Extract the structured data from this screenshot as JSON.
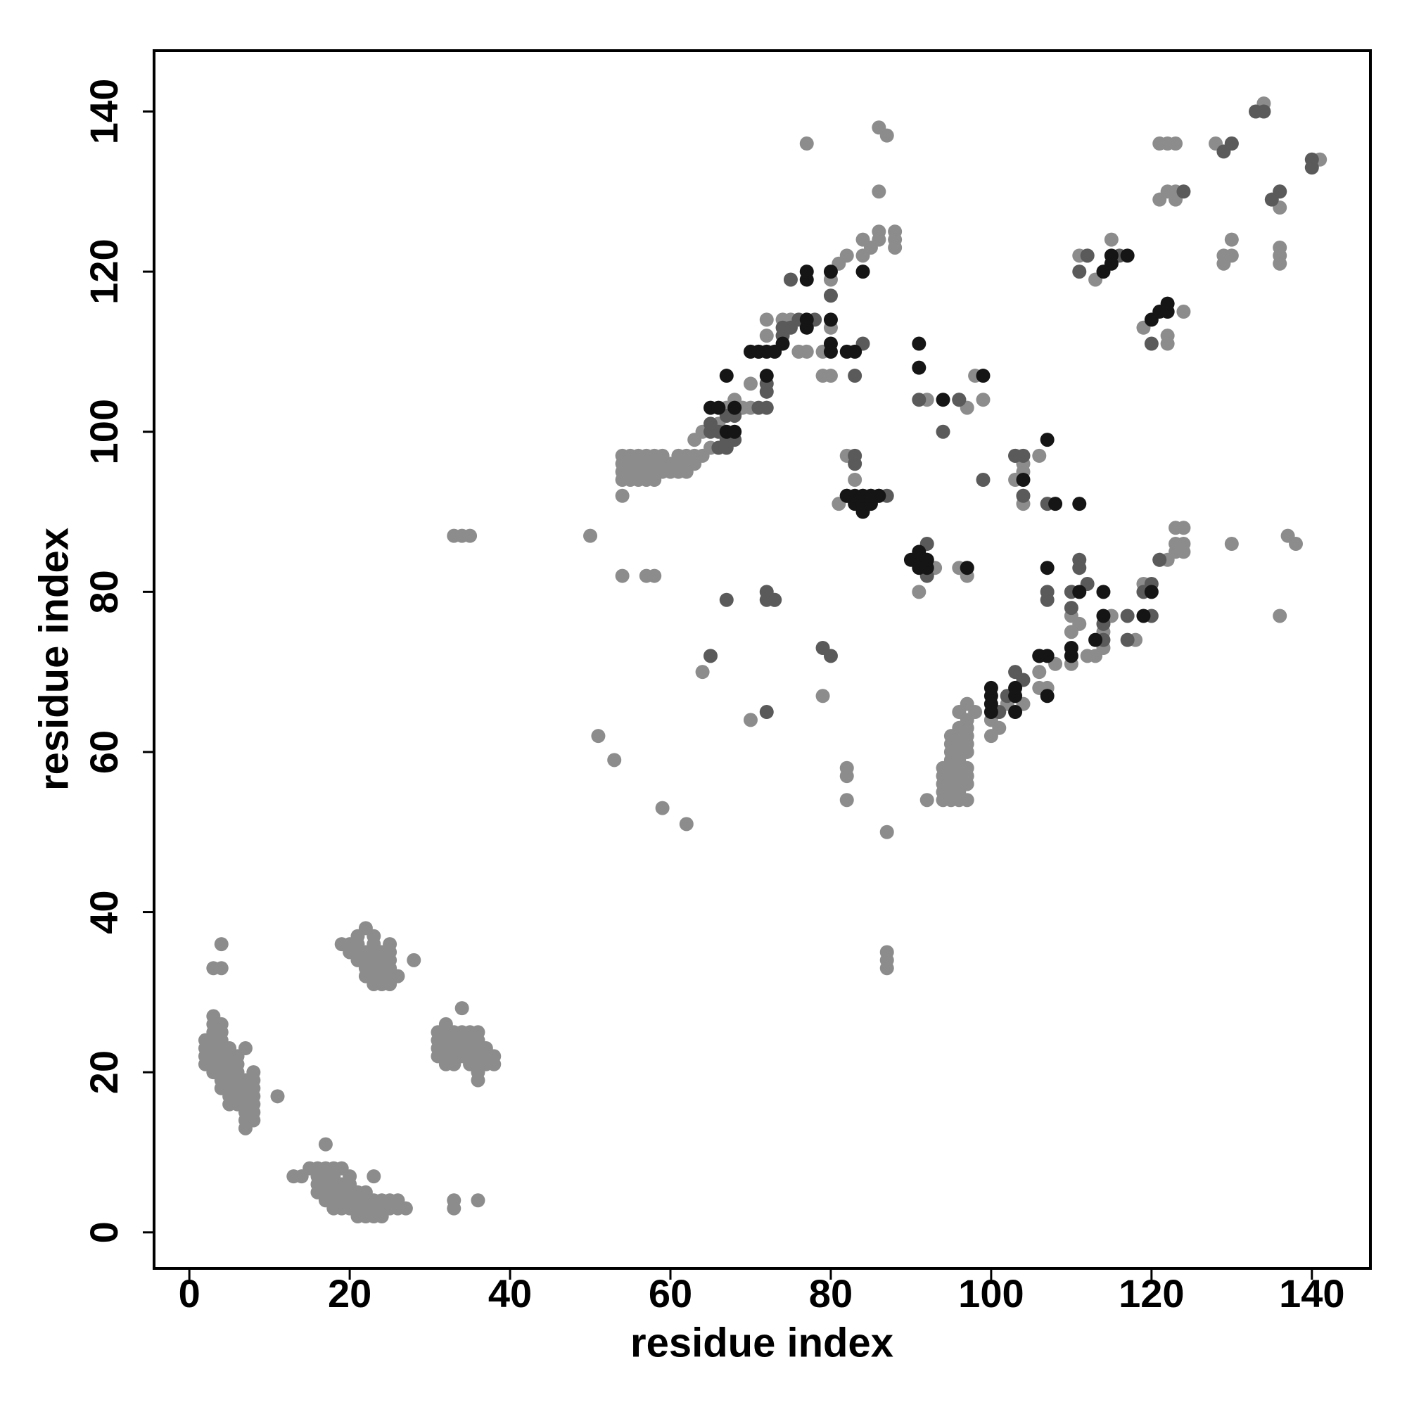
{
  "chart_data": {
    "type": "scatter",
    "x_label": "residue index",
    "y_label": "residue index",
    "xlim": [
      -4.4,
      147.3
    ],
    "ylim": [
      -4.5,
      147.6
    ],
    "xticks": [
      0,
      20,
      40,
      60,
      80,
      100,
      120,
      140
    ],
    "yticks": [
      0,
      20,
      40,
      60,
      80,
      100,
      120,
      140
    ],
    "series": [
      {
        "color": "#8c8c8c",
        "x": [
          2,
          2,
          2,
          2,
          3,
          3,
          3,
          3,
          3,
          3,
          3,
          3,
          4,
          4,
          4,
          4,
          4,
          4,
          4,
          4,
          4,
          5,
          5,
          5,
          5,
          5,
          5,
          5,
          5,
          6,
          6,
          6,
          6,
          6,
          6,
          6,
          7,
          7,
          7,
          7,
          7,
          7,
          7,
          7,
          8,
          8,
          8,
          8,
          8,
          8,
          8,
          11,
          3,
          4,
          4,
          13,
          14,
          15,
          16,
          16,
          16,
          16,
          17,
          17,
          17,
          17,
          17,
          17,
          18,
          18,
          18,
          18,
          18,
          18,
          19,
          19,
          19,
          19,
          19,
          20,
          20,
          20,
          20,
          20,
          21,
          21,
          21,
          21,
          22,
          22,
          22,
          22,
          23,
          23,
          23,
          23,
          24,
          24,
          24,
          25,
          25,
          26,
          26,
          27,
          33,
          33,
          36,
          19,
          20,
          20,
          21,
          21,
          21,
          21,
          22,
          22,
          22,
          22,
          22,
          23,
          23,
          23,
          23,
          23,
          23,
          23,
          24,
          24,
          24,
          24,
          24,
          25,
          25,
          25,
          25,
          25,
          25,
          26,
          28,
          31,
          31,
          31,
          31,
          32,
          32,
          32,
          32,
          32,
          32,
          33,
          33,
          33,
          33,
          33,
          34,
          34,
          34,
          34,
          34,
          35,
          35,
          35,
          35,
          35,
          36,
          36,
          36,
          36,
          36,
          36,
          36,
          37,
          37,
          37,
          38,
          38,
          33,
          34,
          35,
          50,
          54,
          57,
          58,
          51,
          53,
          59,
          62,
          64,
          70,
          77,
          86,
          87,
          86,
          87,
          87,
          87,
          87,
          82,
          82,
          82,
          79,
          92,
          91,
          136,
          137,
          138,
          130,
          54,
          54,
          54,
          54,
          54,
          55,
          55,
          55,
          55,
          56,
          56,
          56,
          56,
          57,
          57,
          57,
          57,
          58,
          58,
          58,
          58,
          59,
          59,
          59,
          60,
          60,
          61,
          61,
          61,
          62,
          62,
          62,
          63,
          63,
          63,
          64,
          64,
          65,
          66,
          67,
          68,
          69,
          70,
          70,
          71,
          72,
          72,
          74,
          75,
          76,
          77,
          79,
          79,
          80,
          80,
          81,
          80,
          82,
          84,
          84,
          85,
          86,
          86,
          88,
          88,
          88,
          94,
          94,
          94,
          94,
          94,
          95,
          95,
          95,
          95,
          95,
          95,
          95,
          95,
          95,
          96,
          96,
          96,
          96,
          96,
          96,
          96,
          96,
          96,
          96,
          96,
          97,
          97,
          97,
          97,
          97,
          97,
          97,
          97,
          97,
          97,
          98,
          100,
          100,
          101,
          102,
          103,
          104,
          106,
          106,
          107,
          108,
          110,
          110,
          110,
          111,
          112,
          113,
          114,
          114,
          115,
          118,
          119,
          121,
          122,
          123,
          123,
          123,
          124,
          124,
          124,
          119,
          121,
          122,
          123,
          121,
          122,
          123,
          123,
          113,
          112,
          111,
          115,
          124,
          129,
          129,
          130,
          130,
          128,
          130,
          134,
          136,
          136,
          136,
          136,
          136,
          141,
          122,
          122,
          104,
          104,
          103,
          104,
          103,
          106,
          104,
          99,
          98,
          97,
          96,
          92,
          93,
          96,
          97,
          81,
          82,
          83,
          82,
          91,
          86,
          96,
          73
        ],
        "values": [
          21,
          22,
          23,
          24,
          20,
          21,
          22,
          23,
          24,
          25,
          26,
          27,
          18,
          19,
          20,
          21,
          22,
          23,
          24,
          25,
          26,
          16,
          17,
          18,
          19,
          20,
          21,
          22,
          23,
          16,
          17,
          18,
          19,
          20,
          21,
          22,
          13,
          14,
          15,
          16,
          17,
          18,
          19,
          23,
          14,
          15,
          16,
          17,
          18,
          19,
          20,
          17,
          33,
          33,
          36,
          7,
          7,
          8,
          5,
          6,
          7,
          8,
          4,
          5,
          6,
          7,
          8,
          11,
          3,
          4,
          5,
          6,
          7,
          8,
          3,
          4,
          5,
          6,
          8,
          3,
          4,
          5,
          6,
          7,
          2,
          3,
          4,
          5,
          2,
          3,
          4,
          5,
          2,
          3,
          4,
          7,
          2,
          3,
          4,
          3,
          4,
          3,
          4,
          3,
          3,
          4,
          4,
          36,
          35,
          36,
          34,
          35,
          36,
          37,
          32,
          33,
          34,
          35,
          38,
          31,
          32,
          33,
          34,
          35,
          36,
          37,
          31,
          32,
          33,
          34,
          35,
          31,
          32,
          33,
          34,
          35,
          36,
          32,
          34,
          22,
          23,
          24,
          25,
          21,
          22,
          23,
          24,
          25,
          26,
          21,
          22,
          23,
          24,
          25,
          22,
          23,
          24,
          25,
          28,
          21,
          22,
          23,
          24,
          25,
          19,
          20,
          21,
          22,
          23,
          24,
          25,
          21,
          22,
          23,
          21,
          22,
          87,
          87,
          87,
          87,
          82,
          82,
          82,
          62,
          59,
          53,
          51,
          70,
          64,
          136,
          138,
          137,
          130,
          50,
          33,
          34,
          35,
          54,
          57,
          58,
          67,
          54,
          80,
          77,
          87,
          86,
          86,
          92,
          94,
          95,
          96,
          97,
          94,
          95,
          96,
          97,
          94,
          95,
          96,
          97,
          94,
          95,
          96,
          97,
          94,
          95,
          96,
          97,
          95,
          96,
          97,
          95,
          96,
          95,
          96,
          97,
          95,
          96,
          97,
          96,
          97,
          99,
          97,
          100,
          98,
          101,
          103,
          104,
          103,
          106,
          103,
          110,
          112,
          114,
          114,
          114,
          110,
          110,
          110,
          107,
          107,
          113,
          121,
          119,
          122,
          122,
          124,
          123,
          124,
          125,
          123,
          124,
          125,
          54,
          55,
          56,
          57,
          58,
          54,
          55,
          56,
          57,
          58,
          59,
          60,
          61,
          62,
          54,
          55,
          56,
          57,
          58,
          59,
          60,
          61,
          62,
          63,
          65,
          54,
          56,
          57,
          58,
          60,
          61,
          62,
          63,
          64,
          66,
          65,
          62,
          64,
          63,
          66,
          67,
          66,
          68,
          70,
          68,
          71,
          71,
          75,
          77,
          76,
          72,
          72,
          73,
          75,
          77,
          74,
          81,
          84,
          84,
          85,
          86,
          88,
          85,
          86,
          88,
          113,
          136,
          136,
          136,
          129,
          130,
          129,
          130,
          119,
          122,
          122,
          124,
          115,
          121,
          122,
          122,
          124,
          136,
          136,
          141,
          128,
          121,
          122,
          123,
          130,
          134,
          111,
          112,
          91,
          92,
          94,
          96,
          97,
          97,
          95,
          104,
          107,
          103,
          104,
          104,
          83,
          83,
          82,
          91,
          97,
          94,
          92,
          84,
          92,
          104,
          79
        ]
      },
      {
        "color": "#5a5a5a",
        "x": [
          65,
          65,
          66,
          66,
          67,
          67,
          68,
          67,
          68,
          71,
          72,
          72,
          72,
          72,
          72,
          73,
          72,
          65,
          67,
          75,
          74,
          74,
          76,
          75,
          80,
          78,
          79,
          80,
          84,
          83,
          85,
          86,
          87,
          84,
          83,
          83,
          82,
          92,
          92,
          92,
          91,
          94,
          96,
          97,
          101,
          102,
          104,
          103,
          107,
          107,
          106,
          111,
          111,
          110,
          110,
          112,
          114,
          114,
          117,
          117,
          120,
          120,
          121,
          119,
          120,
          112,
          111,
          116,
          124,
          129,
          130,
          133,
          134,
          135,
          136,
          140,
          140,
          103,
          104,
          107,
          104,
          99
        ],
        "values": [
          101,
          100,
          98,
          100,
          98,
          99,
          99,
          102,
          102,
          103,
          103,
          105,
          106,
          80,
          79,
          79,
          65,
          72,
          79,
          113,
          112,
          113,
          114,
          119,
          117,
          114,
          73,
          72,
          111,
          107,
          92,
          92,
          92,
          92,
          96,
          97,
          92,
          82,
          84,
          86,
          104,
          100,
          104,
          83,
          65,
          67,
          69,
          70,
          79,
          80,
          72,
          83,
          84,
          80,
          78,
          81,
          74,
          76,
          74,
          77,
          81,
          77,
          84,
          80,
          111,
          122,
          120,
          122,
          130,
          135,
          136,
          140,
          140,
          129,
          130,
          133,
          134,
          97,
          92,
          91,
          97,
          94
        ]
      },
      {
        "color": "#151515",
        "x": [
          65,
          66,
          67,
          68,
          68,
          67,
          70,
          71,
          72,
          72,
          73,
          74,
          77,
          77,
          77,
          77,
          80,
          80,
          80,
          80,
          82,
          83,
          84,
          83,
          83,
          84,
          84,
          84,
          85,
          85,
          86,
          82,
          90,
          91,
          91,
          91,
          92,
          92,
          91,
          91,
          94,
          97,
          99,
          100,
          100,
          100,
          100,
          103,
          103,
          103,
          104,
          106,
          107,
          107,
          107,
          107,
          108,
          111,
          110,
          110,
          111,
          113,
          114,
          114,
          119,
          120,
          114,
          115,
          115,
          120,
          121,
          122,
          122,
          117
        ],
        "values": [
          103,
          103,
          100,
          100,
          103,
          107,
          110,
          110,
          107,
          110,
          110,
          111,
          113,
          114,
          119,
          120,
          120,
          114,
          111,
          110,
          110,
          110,
          120,
          91,
          92,
          90,
          91,
          92,
          91,
          92,
          92,
          92,
          84,
          83,
          84,
          85,
          83,
          84,
          108,
          111,
          104,
          83,
          107,
          65,
          66,
          67,
          68,
          65,
          67,
          68,
          94,
          72,
          72,
          67,
          83,
          99,
          91,
          91,
          72,
          73,
          80,
          74,
          80,
          77,
          77,
          80,
          120,
          121,
          122,
          114,
          115,
          115,
          116,
          122
        ]
      }
    ]
  }
}
